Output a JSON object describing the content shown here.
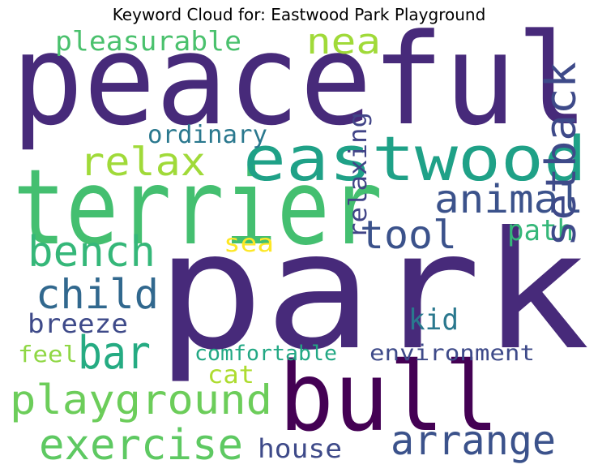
{
  "title": "Keyword Cloud for: Eastwood Park Playground",
  "words": [
    {
      "text": "peaceful",
      "color": "#472a7a"
    },
    {
      "text": "park",
      "color": "#472a7a"
    },
    {
      "text": "terrier",
      "color": "#44bf70"
    },
    {
      "text": "eastwood",
      "color": "#1fa187"
    },
    {
      "text": "bull",
      "color": "#440154"
    },
    {
      "text": "nea",
      "color": "#a0da39"
    },
    {
      "text": "pleasurable",
      "color": "#4ac16d"
    },
    {
      "text": "relax",
      "color": "#a0da39"
    },
    {
      "text": "animal",
      "color": "#3b528b"
    },
    {
      "text": "ordinary",
      "color": "#2a788e"
    },
    {
      "text": "bench",
      "color": "#35b779"
    },
    {
      "text": "tool",
      "color": "#3b528b"
    },
    {
      "text": "path",
      "color": "#35b779"
    },
    {
      "text": "sea",
      "color": "#fde725"
    },
    {
      "text": "child",
      "color": "#31688e"
    },
    {
      "text": "relaxing",
      "color": "#414487"
    },
    {
      "text": "setback",
      "color": "#3e4a89"
    },
    {
      "text": "breeze",
      "color": "#3e4a89"
    },
    {
      "text": "kid",
      "color": "#2a788e"
    },
    {
      "text": "bar",
      "color": "#25ab82"
    },
    {
      "text": "feel",
      "color": "#8fd744"
    },
    {
      "text": "comfortable",
      "color": "#22a884"
    },
    {
      "text": "environment",
      "color": "#3e4a89"
    },
    {
      "text": "cat",
      "color": "#addc30"
    },
    {
      "text": "playground",
      "color": "#6ccd5a"
    },
    {
      "text": "exercise",
      "color": "#5ec962"
    },
    {
      "text": "arrange",
      "color": "#3b528b"
    },
    {
      "text": "house",
      "color": "#3e4a89"
    }
  ]
}
